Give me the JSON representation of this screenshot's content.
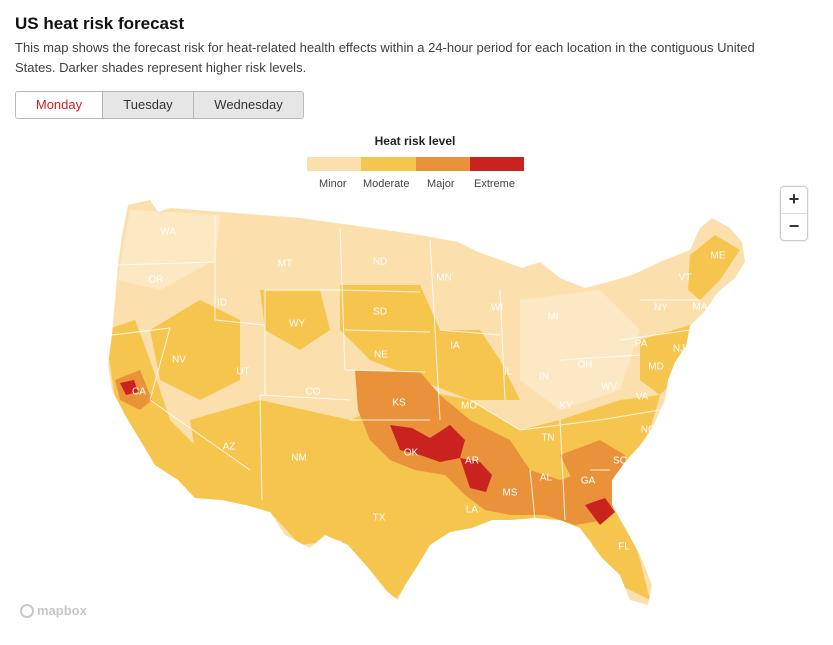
{
  "header": {
    "title": "US heat risk forecast",
    "subtitle": "This map shows the forecast risk for heat-related health effects within a 24-hour period for each location in the contiguous United States. Darker shades represent higher risk levels."
  },
  "tabs": [
    {
      "label": "Monday",
      "active": true
    },
    {
      "label": "Tuesday",
      "active": false
    },
    {
      "label": "Wednesday",
      "active": false
    }
  ],
  "legend": {
    "title": "Heat risk level",
    "levels": [
      {
        "label": "Minor",
        "color": "#fbe0ad"
      },
      {
        "label": "Moderate",
        "color": "#f6c54e"
      },
      {
        "label": "Major",
        "color": "#ea923a"
      },
      {
        "label": "Extreme",
        "color": "#c9221f"
      }
    ]
  },
  "zoom": {
    "in": "+",
    "out": "−"
  },
  "attribution": "mapbox",
  "states": [
    "WA",
    "OR",
    "CA",
    "NV",
    "ID",
    "MT",
    "WY",
    "UT",
    "AZ",
    "CO",
    "NM",
    "ND",
    "SD",
    "NE",
    "KS",
    "OK",
    "TX",
    "MN",
    "IA",
    "MO",
    "AR",
    "LA",
    "WI",
    "IL",
    "MI",
    "IN",
    "OH",
    "KY",
    "TN",
    "MS",
    "AL",
    "GA",
    "FL",
    "SC",
    "NC",
    "VA",
    "WV",
    "PA",
    "NY",
    "VT",
    "ME",
    "MA",
    "NJ",
    "MD"
  ]
}
